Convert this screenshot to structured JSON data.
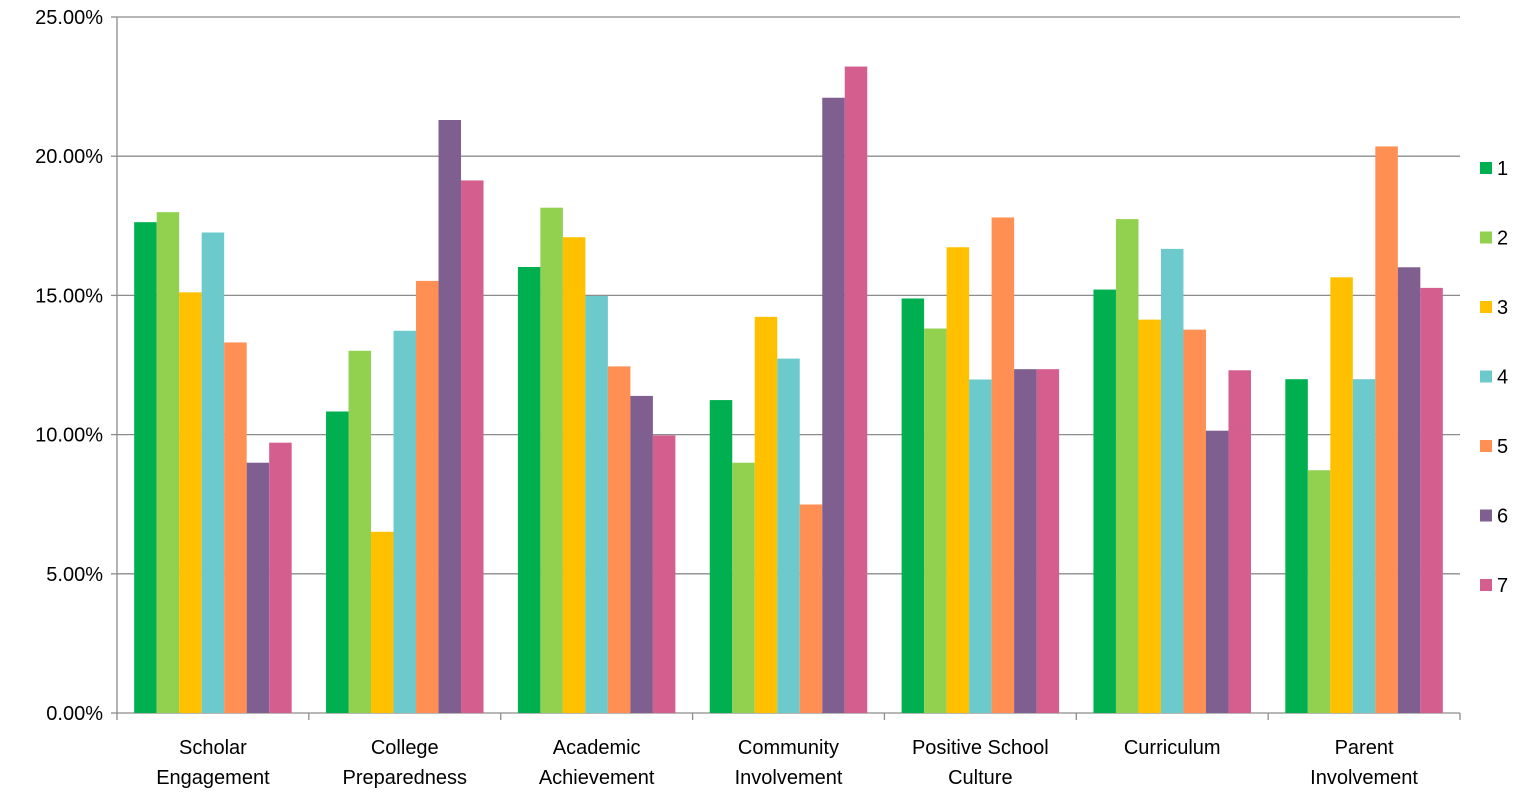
{
  "chart_data": {
    "type": "bar",
    "title": "",
    "xlabel": "",
    "ylabel": "",
    "ylim": [
      0,
      0.25
    ],
    "yticks": [
      {
        "value": 0.0,
        "label": "0.00%"
      },
      {
        "value": 0.05,
        "label": "5.00%"
      },
      {
        "value": 0.1,
        "label": "10.00%"
      },
      {
        "value": 0.15,
        "label": "15.00%"
      },
      {
        "value": 0.2,
        "label": "20.00%"
      },
      {
        "value": 0.25,
        "label": "25.00%"
      }
    ],
    "grid": true,
    "legend_position": "right",
    "categories": [
      [
        "Scholar",
        "Engagement"
      ],
      [
        "College",
        "Preparedness"
      ],
      [
        "Academic",
        "Achievement"
      ],
      [
        "Community",
        "Involvement"
      ],
      [
        "Positive School",
        "Culture"
      ],
      [
        "Curriculum"
      ],
      [
        "Parent",
        "Involvement"
      ]
    ],
    "series": [
      {
        "name": "1",
        "color": "#00b050",
        "values": [
          0.1763,
          0.1083,
          0.1602,
          0.1124,
          0.1489,
          0.1521,
          0.1199
        ]
      },
      {
        "name": "2",
        "color": "#92d050",
        "values": [
          0.1799,
          0.1301,
          0.1815,
          0.0899,
          0.1381,
          0.1774,
          0.0872
        ]
      },
      {
        "name": "3",
        "color": "#ffc000",
        "values": [
          0.1511,
          0.0651,
          0.1709,
          0.1423,
          0.1673,
          0.1413,
          0.1565
        ]
      },
      {
        "name": "4",
        "color": "#6ccacc",
        "values": [
          0.1726,
          0.1373,
          0.1498,
          0.1273,
          0.1198,
          0.1667,
          0.1199
        ]
      },
      {
        "name": "5",
        "color": "#ff8f52",
        "values": [
          0.1331,
          0.1552,
          0.1245,
          0.0749,
          0.178,
          0.1377,
          0.2035
        ]
      },
      {
        "name": "6",
        "color": "#7f5f90",
        "values": [
          0.0899,
          0.213,
          0.1139,
          0.221,
          0.1235,
          0.1014,
          0.1601
        ]
      },
      {
        "name": "7",
        "color": "#d45f8f",
        "values": [
          0.0971,
          0.1913,
          0.0997,
          0.2322,
          0.1235,
          0.1231,
          0.1527
        ]
      }
    ]
  }
}
